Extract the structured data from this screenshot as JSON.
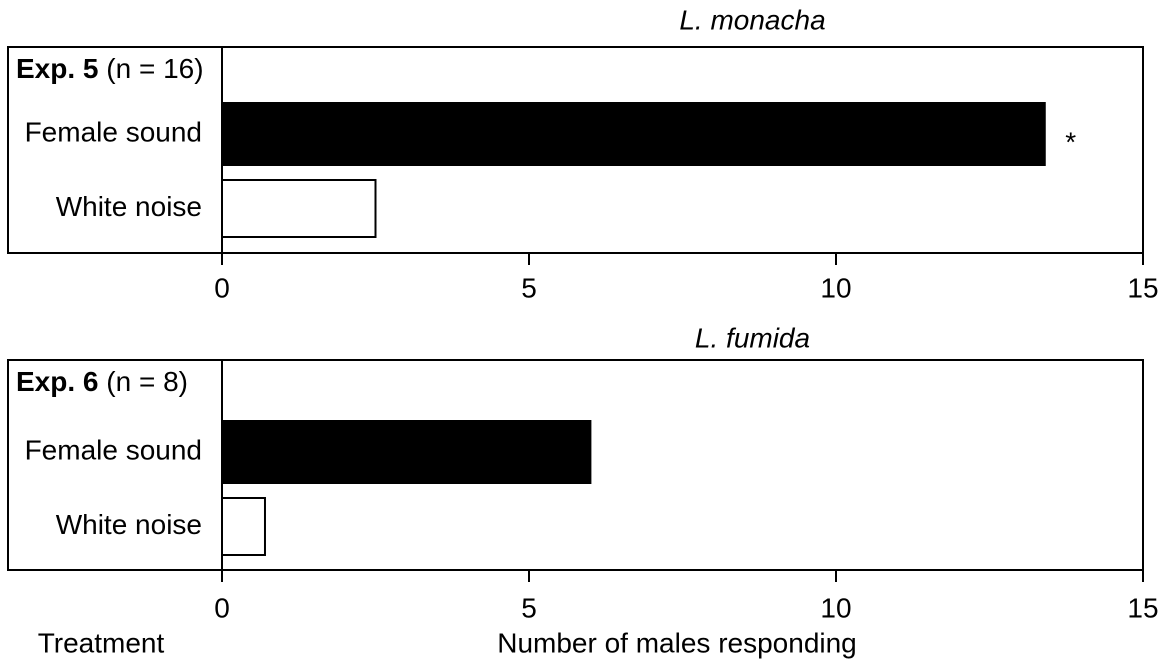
{
  "chart_data": [
    {
      "type": "barh",
      "title": "L. monacha",
      "label": "Exp. 5",
      "sublabel": "(n = 16)",
      "categories": [
        "Female sound",
        "White noise"
      ],
      "values": [
        13.4,
        2.5
      ],
      "colors": [
        "#000000",
        "#ffffff"
      ],
      "xlim": [
        0,
        15
      ],
      "xticks": [
        0,
        5,
        10,
        15
      ],
      "annotation": "*"
    },
    {
      "type": "barh",
      "title": "L. fumida",
      "label": "Exp. 6",
      "sublabel": "(n = 8)",
      "categories": [
        "Female sound",
        "White noise"
      ],
      "values": [
        6,
        0.7
      ],
      "colors": [
        "#000000",
        "#ffffff"
      ],
      "xlim": [
        0,
        15
      ],
      "xticks": [
        0,
        5,
        10,
        15
      ]
    }
  ],
  "y_axis_label": "Treatment",
  "x_axis_label": "Number of males responding"
}
